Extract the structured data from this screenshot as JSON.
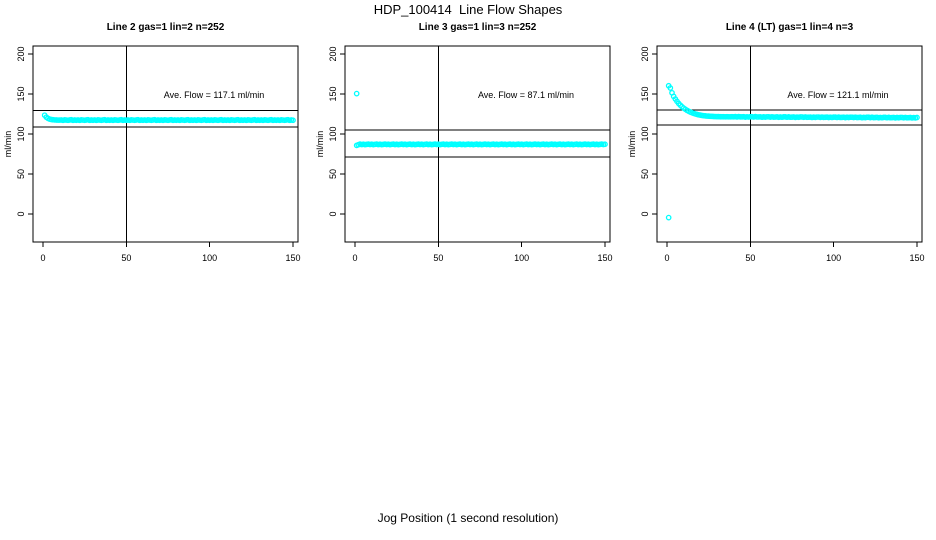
{
  "page": {
    "title": "HDP_100414  Line Flow Shapes",
    "xlabel": "Jog Position (1 second resolution)"
  },
  "style": {
    "point_color": "#00ffff",
    "axis_color": "#000000",
    "background": "#ffffff"
  },
  "axes": {
    "x_ticks": [
      0,
      50,
      100,
      150
    ],
    "y_ticks": [
      0,
      50,
      100,
      150,
      200
    ],
    "y_unit_label": "ml/min",
    "x_domain": [
      -6,
      153
    ],
    "y_domain": [
      -35,
      210
    ],
    "vline_x": 50
  },
  "chart_data": [
    {
      "type": "scatter",
      "title": "Line 2 gas=1 lin=2 n=252",
      "annotation": "Ave. Flow =  117.1  ml/min",
      "ave_flow_ml_min": 117.1,
      "n": 252,
      "hlines": [
        129.5,
        108.8
      ],
      "outliers": [],
      "series": {
        "x_start": 1,
        "x_step": 1,
        "y": [
          123.5,
          121.0,
          119.5,
          118.6,
          118.1,
          117.8,
          117.6,
          117.5,
          117.4,
          117.4,
          117.6,
          117.1,
          117.7,
          117.4,
          117.2,
          117.5,
          117.8,
          117.1,
          117.5,
          117.2,
          117.6,
          117.1,
          117.7,
          117.4,
          117.2,
          117.5,
          117.8,
          117.1,
          117.5,
          117.2,
          117.6,
          117.1,
          117.7,
          117.4,
          117.2,
          117.5,
          117.8,
          117.1,
          117.5,
          117.2,
          117.6,
          117.1,
          117.7,
          117.4,
          117.2,
          117.5,
          117.8,
          117.1,
          117.5,
          117.2,
          117.6,
          117.1,
          117.7,
          117.4,
          117.2,
          117.5,
          117.8,
          117.1,
          117.5,
          117.2,
          117.6,
          117.1,
          117.7,
          117.4,
          117.2,
          117.5,
          117.8,
          117.1,
          117.5,
          117.2,
          117.6,
          117.1,
          117.7,
          117.4,
          117.2,
          117.5,
          117.8,
          117.1,
          117.5,
          117.2,
          117.6,
          117.1,
          117.7,
          117.4,
          117.2,
          117.5,
          117.8,
          117.1,
          117.5,
          117.2,
          117.6,
          117.1,
          117.7,
          117.4,
          117.2,
          117.5,
          117.8,
          117.1,
          117.5,
          117.2,
          117.6,
          117.1,
          117.7,
          117.4,
          117.2,
          117.5,
          117.8,
          117.1,
          117.5,
          117.2,
          117.6,
          117.1,
          117.7,
          117.4,
          117.2,
          117.5,
          117.8,
          117.1,
          117.5,
          117.2,
          117.6,
          117.1,
          117.7,
          117.4,
          117.2,
          117.5,
          117.8,
          117.1,
          117.5,
          117.2,
          117.6,
          117.1,
          117.7,
          117.4,
          117.2,
          117.5,
          117.8,
          117.1,
          117.5,
          117.2,
          117.6,
          117.1,
          117.7,
          117.4,
          117.2,
          117.5,
          117.8,
          117.1,
          117.5,
          117.2
        ]
      }
    },
    {
      "type": "scatter",
      "title": "Line 3 gas=1 lin=3 n=252",
      "annotation": "Ave. Flow =  87.1  ml/min",
      "ave_flow_ml_min": 87.1,
      "n": 252,
      "hlines": [
        105.0,
        71.2
      ],
      "outliers": [
        [
          1,
          150.5
        ]
      ],
      "series": {
        "x_start": 1,
        "x_step": 1,
        "y": [
          85.8,
          86.6,
          87.3,
          86.8,
          87.2,
          86.7,
          87.0,
          87.3,
          86.9,
          87.2,
          86.7,
          87.1,
          87.3,
          86.8,
          87.2,
          86.7,
          87.0,
          87.3,
          86.9,
          87.2,
          86.7,
          87.1,
          87.3,
          86.8,
          87.2,
          86.7,
          87.0,
          87.3,
          86.9,
          87.2,
          86.7,
          87.1,
          87.3,
          86.8,
          87.2,
          86.7,
          87.0,
          87.3,
          86.9,
          87.2,
          86.7,
          87.1,
          87.3,
          86.8,
          87.2,
          86.7,
          87.0,
          87.3,
          86.9,
          87.2,
          86.7,
          87.1,
          87.3,
          86.8,
          87.2,
          86.7,
          87.0,
          87.3,
          86.9,
          87.2,
          86.7,
          87.1,
          87.3,
          86.8,
          87.2,
          86.7,
          87.0,
          87.3,
          86.9,
          87.2,
          86.7,
          87.1,
          87.3,
          86.8,
          87.2,
          86.7,
          87.0,
          87.3,
          86.9,
          87.2,
          86.7,
          87.1,
          87.3,
          86.8,
          87.2,
          86.7,
          87.0,
          87.3,
          86.9,
          87.2,
          86.7,
          87.1,
          87.3,
          86.8,
          87.2,
          86.7,
          87.0,
          87.3,
          86.9,
          87.2,
          86.7,
          87.1,
          87.3,
          86.8,
          87.2,
          86.7,
          87.0,
          87.3,
          86.9,
          87.2,
          86.7,
          87.1,
          87.3,
          86.8,
          87.2,
          86.7,
          87.0,
          87.3,
          86.9,
          87.2,
          86.7,
          87.1,
          87.3,
          86.8,
          87.2,
          86.7,
          87.0,
          87.3,
          86.9,
          87.2,
          86.7,
          87.1,
          87.3,
          86.8,
          87.2,
          86.7,
          87.0,
          87.3,
          86.9,
          87.2,
          86.7,
          87.1,
          87.3,
          86.8,
          87.2,
          86.7,
          87.0,
          87.3,
          86.9,
          87.2
        ]
      }
    },
    {
      "type": "scatter",
      "title": "Line 4 (LT) gas=1 lin=4 n=3",
      "annotation": "Ave. Flow =  121.1  ml/min",
      "ave_flow_ml_min": 121.1,
      "n": 3,
      "hlines": [
        130.3,
        111.5
      ],
      "outliers": [
        [
          1,
          -4.5
        ]
      ],
      "series": {
        "x_start": 1,
        "x_step": 1,
        "y": [
          160.3,
          157.5,
          151.5,
          147.0,
          143.7,
          140.8,
          138.2,
          136.0,
          134.1,
          132.4,
          130.9,
          129.6,
          128.4,
          127.4,
          126.6,
          125.8,
          125.1,
          124.5,
          124.0,
          123.6,
          123.2,
          122.9,
          122.7,
          122.4,
          122.3,
          122.1,
          122.0,
          121.9,
          121.8,
          121.7,
          121.7,
          121.6,
          121.6,
          121.6,
          121.5,
          121.6,
          121.5,
          121.5,
          121.6,
          121.5,
          121.7,
          121.3,
          121.8,
          121.4,
          121.4,
          121.6,
          121.1,
          121.5,
          121.2,
          121.6,
          121.6,
          121.2,
          121.7,
          121.3,
          121.3,
          121.5,
          121.0,
          121.4,
          121.1,
          121.5,
          121.5,
          121.1,
          121.5,
          121.1,
          121.2,
          121.4,
          120.9,
          121.3,
          121.0,
          121.4,
          121.4,
          121.0,
          121.4,
          121.0,
          121.1,
          121.3,
          120.8,
          121.2,
          120.9,
          121.3,
          121.3,
          120.9,
          121.3,
          120.9,
          121.0,
          121.2,
          120.7,
          121.1,
          120.8,
          121.2,
          121.2,
          120.8,
          121.2,
          120.8,
          120.9,
          121.1,
          120.6,
          121.0,
          120.7,
          121.1,
          121.1,
          120.7,
          121.1,
          120.7,
          120.8,
          121.0,
          120.5,
          120.9,
          120.6,
          121.0,
          121.0,
          120.6,
          121.0,
          120.6,
          120.7,
          120.9,
          120.4,
          120.8,
          120.5,
          120.9,
          120.9,
          120.5,
          120.9,
          120.5,
          120.6,
          120.8,
          120.3,
          120.7,
          120.4,
          120.8,
          120.8,
          120.4,
          120.8,
          120.4,
          120.5,
          120.7,
          120.2,
          120.6,
          120.3,
          120.7,
          120.7,
          120.3,
          120.7,
          120.3,
          120.4,
          120.6,
          120.1,
          120.5,
          120.2,
          120.6
        ]
      }
    }
  ]
}
